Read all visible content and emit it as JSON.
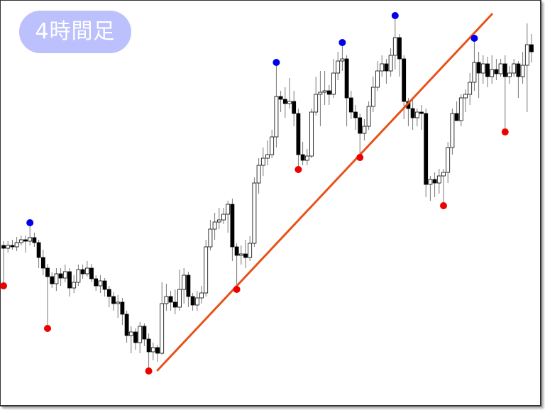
{
  "timeframe_label": "4時間足",
  "chart_data": {
    "type": "candlestick",
    "title": "4時間足",
    "ylim": [
      0,
      578
    ],
    "colors": {
      "bullish_body": "#ffffff",
      "bearish_body": "#000000",
      "wick": "#777777",
      "swing_high": "#0000ee",
      "swing_low": "#ee0000",
      "trendline": "#e8521a",
      "label_bg": "#bcc0fc"
    },
    "candles_ohlc": [
      [
        232,
        238,
        180,
        228
      ],
      [
        228,
        238,
        222,
        232
      ],
      [
        232,
        240,
        226,
        230
      ],
      [
        230,
        244,
        224,
        236
      ],
      [
        236,
        246,
        232,
        240
      ],
      [
        240,
        246,
        222,
        238
      ],
      [
        238,
        259,
        232,
        243
      ],
      [
        243,
        250,
        230,
        236
      ],
      [
        236,
        240,
        200,
        215
      ],
      [
        215,
        226,
        190,
        200
      ],
      [
        200,
        206,
        120,
        188
      ],
      [
        188,
        194,
        172,
        178
      ],
      [
        178,
        200,
        168,
        192
      ],
      [
        192,
        200,
        175,
        186
      ],
      [
        186,
        205,
        180,
        195
      ],
      [
        195,
        200,
        160,
        172
      ],
      [
        172,
        190,
        165,
        180
      ],
      [
        180,
        205,
        175,
        198
      ],
      [
        198,
        205,
        185,
        192
      ],
      [
        192,
        210,
        188,
        200
      ],
      [
        200,
        206,
        180,
        185
      ],
      [
        185,
        190,
        168,
        175
      ],
      [
        175,
        190,
        165,
        182
      ],
      [
        182,
        186,
        160,
        170
      ],
      [
        170,
        175,
        145,
        160
      ],
      [
        160,
        166,
        140,
        150
      ],
      [
        150,
        162,
        130,
        152
      ],
      [
        152,
        158,
        120,
        135
      ],
      [
        135,
        140,
        95,
        105
      ],
      [
        105,
        118,
        80,
        110
      ],
      [
        110,
        115,
        85,
        95
      ],
      [
        95,
        124,
        80,
        118
      ],
      [
        118,
        122,
        90,
        100
      ],
      [
        100,
        108,
        60,
        82
      ],
      [
        82,
        95,
        70,
        88
      ],
      [
        88,
        92,
        68,
        80
      ],
      [
        80,
        180,
        78,
        150
      ],
      [
        150,
        178,
        140,
        160
      ],
      [
        160,
        168,
        140,
        152
      ],
      [
        152,
        170,
        135,
        145
      ],
      [
        145,
        198,
        140,
        170
      ],
      [
        170,
        200,
        150,
        190
      ],
      [
        190,
        195,
        145,
        160
      ],
      [
        160,
        165,
        140,
        148
      ],
      [
        148,
        168,
        140,
        158
      ],
      [
        158,
        175,
        150,
        165
      ],
      [
        165,
        240,
        160,
        230
      ],
      [
        230,
        268,
        225,
        255
      ],
      [
        255,
        278,
        240,
        265
      ],
      [
        265,
        285,
        255,
        268
      ],
      [
        268,
        285,
        262,
        276
      ],
      [
        276,
        295,
        250,
        290
      ],
      [
        290,
        298,
        210,
        230
      ],
      [
        230,
        235,
        175,
        218
      ],
      [
        218,
        232,
        205,
        220
      ],
      [
        220,
        240,
        200,
        215
      ],
      [
        215,
        245,
        210,
        235
      ],
      [
        235,
        328,
        230,
        320
      ],
      [
        320,
        355,
        305,
        345
      ],
      [
        345,
        370,
        330,
        355
      ],
      [
        355,
        380,
        345,
        360
      ],
      [
        360,
        395,
        355,
        385
      ],
      [
        385,
        485,
        370,
        442
      ],
      [
        442,
        450,
        420,
        438
      ],
      [
        438,
        455,
        412,
        432
      ],
      [
        432,
        468,
        425,
        435
      ],
      [
        435,
        450,
        400,
        418
      ],
      [
        418,
        425,
        344,
        360
      ],
      [
        360,
        378,
        345,
        352
      ],
      [
        352,
        368,
        345,
        358
      ],
      [
        358,
        425,
        355,
        420
      ],
      [
        420,
        470,
        415,
        445
      ],
      [
        445,
        478,
        400,
        448
      ],
      [
        448,
        478,
        430,
        450
      ],
      [
        450,
        458,
        430,
        445
      ],
      [
        445,
        495,
        440,
        475
      ],
      [
        475,
        505,
        465,
        492
      ],
      [
        492,
        513,
        478,
        495
      ],
      [
        495,
        500,
        400,
        440
      ],
      [
        440,
        450,
        410,
        420
      ],
      [
        420,
        430,
        395,
        412
      ],
      [
        412,
        418,
        361,
        390
      ],
      [
        390,
        410,
        380,
        400
      ],
      [
        400,
        435,
        395,
        428
      ],
      [
        428,
        470,
        420,
        455
      ],
      [
        455,
        492,
        450,
        478
      ],
      [
        478,
        500,
        470,
        488
      ],
      [
        488,
        495,
        460,
        478
      ],
      [
        478,
        510,
        470,
        500
      ],
      [
        500,
        551,
        480,
        525
      ],
      [
        525,
        530,
        470,
        495
      ],
      [
        495,
        500,
        410,
        435
      ],
      [
        435,
        440,
        400,
        425
      ],
      [
        425,
        440,
        395,
        412
      ],
      [
        412,
        425,
        400,
        420
      ],
      [
        420,
        430,
        395,
        418
      ],
      [
        418,
        425,
        300,
        318
      ],
      [
        318,
        330,
        295,
        325
      ],
      [
        325,
        335,
        300,
        320
      ],
      [
        320,
        340,
        305,
        330
      ],
      [
        330,
        340,
        293,
        335
      ],
      [
        335,
        378,
        320,
        370
      ],
      [
        370,
        425,
        360,
        418
      ],
      [
        418,
        435,
        408,
        408
      ],
      [
        408,
        445,
        400,
        440
      ],
      [
        440,
        452,
        420,
        445
      ],
      [
        445,
        475,
        430,
        462
      ],
      [
        462,
        519,
        450,
        490
      ],
      [
        490,
        505,
        440,
        475
      ],
      [
        475,
        500,
        460,
        488
      ],
      [
        488,
        498,
        455,
        470
      ],
      [
        470,
        500,
        460,
        480
      ],
      [
        480,
        495,
        465,
        474
      ],
      [
        474,
        495,
        470,
        488
      ],
      [
        488,
        500,
        397,
        470
      ],
      [
        470,
        485,
        460,
        475
      ],
      [
        475,
        495,
        470,
        488
      ],
      [
        488,
        492,
        440,
        470
      ],
      [
        470,
        505,
        460,
        486
      ],
      [
        486,
        545,
        420,
        515
      ],
      [
        515,
        530,
        490,
        505
      ]
    ],
    "swing_high_indices": [
      6,
      62,
      77,
      89,
      107
    ],
    "swing_low_indices": [
      0,
      10,
      33,
      53,
      67,
      81,
      100,
      114
    ],
    "trendline": {
      "start": {
        "index": 35,
        "price": 56
      },
      "end": {
        "index": 111,
        "price": 558
      }
    }
  }
}
